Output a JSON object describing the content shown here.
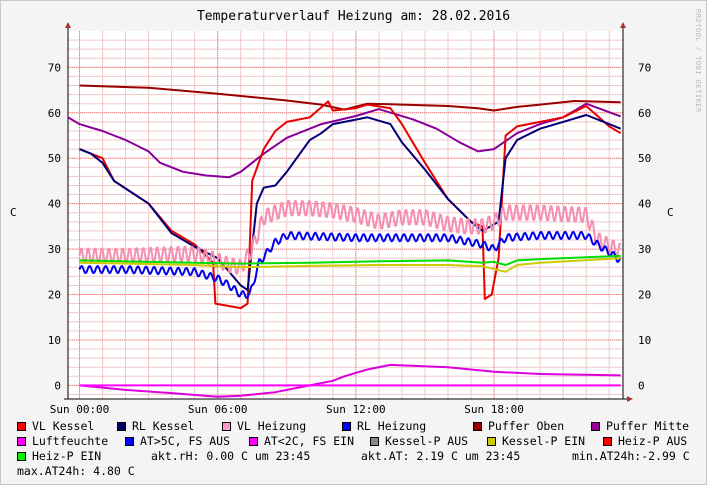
{
  "title": "Temperaturverlauf Heizung am: 28.02.2016",
  "watermark": "RRDTOOL / TOBI OETIKER",
  "ylabel": "C",
  "chart_data": {
    "type": "line",
    "ylim": [
      -3,
      78
    ],
    "xlim": [
      -0.5,
      23.6
    ],
    "grid": true,
    "y_ticks": [
      0,
      10,
      20,
      30,
      40,
      50,
      60,
      70
    ],
    "x_ticks": [
      {
        "v": 0,
        "label": "Sun 00:00"
      },
      {
        "v": 6,
        "label": "Sun 06:00"
      },
      {
        "v": 12,
        "label": "Sun 12:00"
      },
      {
        "v": 18,
        "label": "Sun 18:00"
      }
    ],
    "series": [
      {
        "name": "Puffer Oben",
        "color": "#990000",
        "points": [
          [
            0,
            66
          ],
          [
            3,
            65.5
          ],
          [
            6,
            64.2
          ],
          [
            9,
            62.7
          ],
          [
            10.5,
            61.8
          ],
          [
            11.5,
            60.7
          ],
          [
            12.5,
            62
          ],
          [
            14,
            61.8
          ],
          [
            16,
            61.5
          ],
          [
            17.3,
            61
          ],
          [
            18,
            60.5
          ],
          [
            19,
            61.3
          ],
          [
            20,
            61.8
          ],
          [
            21.5,
            62.6
          ],
          [
            23.5,
            62.3
          ]
        ]
      },
      {
        "name": "Puffer Mitte",
        "color": "#880099",
        "points": [
          [
            -0.5,
            59
          ],
          [
            0,
            57.5
          ],
          [
            1,
            56
          ],
          [
            2,
            54
          ],
          [
            3,
            51.5
          ],
          [
            3.5,
            49
          ],
          [
            4.5,
            47
          ],
          [
            5.5,
            46.2
          ],
          [
            6.5,
            45.8
          ],
          [
            7,
            47
          ],
          [
            8,
            51
          ],
          [
            9,
            54.5
          ],
          [
            10.5,
            57.5
          ],
          [
            12,
            59.3
          ],
          [
            13,
            60.8
          ],
          [
            14.5,
            58.5
          ],
          [
            15.5,
            56.5
          ],
          [
            16.5,
            53.5
          ],
          [
            17.3,
            51.5
          ],
          [
            18,
            52
          ],
          [
            19,
            55.5
          ],
          [
            20,
            57.5
          ],
          [
            21,
            59
          ],
          [
            22,
            62
          ],
          [
            23.5,
            59.2
          ]
        ]
      },
      {
        "name": "VL Kessel",
        "color": "#e60000",
        "points": [
          [
            0,
            52
          ],
          [
            0.5,
            51
          ],
          [
            1,
            50
          ],
          [
            1.5,
            45
          ],
          [
            3,
            40
          ],
          [
            4,
            34
          ],
          [
            5,
            31
          ],
          [
            5.8,
            27
          ],
          [
            5.9,
            18
          ],
          [
            7,
            17
          ],
          [
            7.3,
            18
          ],
          [
            7.5,
            45
          ],
          [
            8,
            52
          ],
          [
            8.5,
            56
          ],
          [
            9,
            58
          ],
          [
            10,
            59
          ],
          [
            10.8,
            62.5
          ],
          [
            11,
            60.5
          ],
          [
            12,
            61
          ],
          [
            12.5,
            61.8
          ],
          [
            13.5,
            61
          ],
          [
            14,
            57.5
          ],
          [
            15,
            49
          ],
          [
            16,
            41
          ],
          [
            17,
            36
          ],
          [
            17.5,
            35
          ],
          [
            17.6,
            19
          ],
          [
            17.9,
            20
          ],
          [
            18.2,
            28
          ],
          [
            18.5,
            55
          ],
          [
            19,
            57
          ],
          [
            20,
            58
          ],
          [
            21,
            59
          ],
          [
            22,
            61.5
          ],
          [
            23,
            57
          ],
          [
            23.5,
            55.5
          ]
        ]
      },
      {
        "name": "RL Kessel",
        "color": "#000077",
        "points": [
          [
            0,
            52
          ],
          [
            0.5,
            51
          ],
          [
            1,
            49
          ],
          [
            1.5,
            45
          ],
          [
            3,
            40
          ],
          [
            4,
            33.5
          ],
          [
            5,
            30.5
          ],
          [
            6,
            28
          ],
          [
            7,
            22
          ],
          [
            7.3,
            21
          ],
          [
            7.7,
            40
          ],
          [
            8,
            43.5
          ],
          [
            8.5,
            44
          ],
          [
            9,
            47
          ],
          [
            10,
            54
          ],
          [
            10.5,
            55.5
          ],
          [
            11,
            57.5
          ],
          [
            12,
            58.5
          ],
          [
            12.5,
            59
          ],
          [
            13.5,
            57.5
          ],
          [
            14,
            53.5
          ],
          [
            15,
            47.5
          ],
          [
            16,
            41
          ],
          [
            17,
            36
          ],
          [
            17.5,
            34
          ],
          [
            18.2,
            36
          ],
          [
            18.5,
            50
          ],
          [
            19,
            54
          ],
          [
            20,
            56.5
          ],
          [
            21,
            58
          ],
          [
            22,
            59.5
          ],
          [
            23,
            57.5
          ],
          [
            23.5,
            56.5
          ]
        ]
      },
      {
        "name": "VL Heizung",
        "color": "#f48fb1",
        "band": 1.8,
        "period": 0.3,
        "points": [
          [
            0,
            28.5
          ],
          [
            2,
            28.5
          ],
          [
            5,
            29
          ],
          [
            6,
            27.5
          ],
          [
            6.5,
            26.5
          ],
          [
            7,
            26
          ],
          [
            7.5,
            30
          ],
          [
            8,
            37
          ],
          [
            9,
            39
          ],
          [
            10,
            39
          ],
          [
            11,
            38.5
          ],
          [
            12,
            37.5
          ],
          [
            13,
            36
          ],
          [
            14,
            37
          ],
          [
            15,
            37
          ],
          [
            16,
            35.5
          ],
          [
            16.8,
            35
          ],
          [
            17.5,
            35
          ],
          [
            18,
            36
          ],
          [
            18.5,
            38
          ],
          [
            20,
            38
          ],
          [
            22,
            37.5
          ],
          [
            22.5,
            32
          ],
          [
            23.5,
            29.5
          ]
        ]
      },
      {
        "name": "RL Heizung",
        "color": "#0000ee",
        "band": 0.8,
        "period": 0.35,
        "points": [
          [
            0,
            25.5
          ],
          [
            2,
            25.5
          ],
          [
            5,
            25
          ],
          [
            6,
            23.5
          ],
          [
            6.5,
            22
          ],
          [
            7,
            20
          ],
          [
            7.4,
            20
          ],
          [
            7.8,
            27
          ],
          [
            8.5,
            31.5
          ],
          [
            9,
            33
          ],
          [
            12,
            32.5
          ],
          [
            14,
            32.5
          ],
          [
            16,
            32.5
          ],
          [
            17,
            31.5
          ],
          [
            17.5,
            31
          ],
          [
            18,
            30
          ],
          [
            18.5,
            32.5
          ],
          [
            20,
            33
          ],
          [
            22,
            33
          ],
          [
            22.5,
            31
          ],
          [
            23.5,
            27.5
          ]
        ]
      },
      {
        "name": "Heiz-P EIN",
        "color": "#00dd00",
        "points": [
          [
            0,
            27.5
          ],
          [
            5,
            27
          ],
          [
            7,
            26.8
          ],
          [
            10,
            27
          ],
          [
            13,
            27.3
          ],
          [
            16,
            27.5
          ],
          [
            17.5,
            27
          ],
          [
            18,
            27.2
          ],
          [
            18.5,
            26.5
          ],
          [
            19,
            27.5
          ],
          [
            20,
            27.8
          ],
          [
            23.5,
            28.5
          ]
        ]
      },
      {
        "name": "Kessel-P EIN",
        "color": "#cccc00",
        "points": [
          [
            0,
            27
          ],
          [
            5,
            26.5
          ],
          [
            7,
            26
          ],
          [
            10,
            26.3
          ],
          [
            13,
            26.5
          ],
          [
            16,
            26.5
          ],
          [
            17.5,
            26.2
          ],
          [
            18.5,
            25
          ],
          [
            19,
            26.5
          ],
          [
            20,
            27
          ],
          [
            23.5,
            28
          ]
        ]
      },
      {
        "name": "Luftfeuchte",
        "color": "#dd00dd",
        "points": [
          [
            0,
            0
          ],
          [
            1,
            -0.5
          ],
          [
            2,
            -1
          ],
          [
            4,
            -1.7
          ],
          [
            6,
            -2.5
          ],
          [
            7,
            -2.3
          ],
          [
            8.5,
            -1.5
          ],
          [
            10,
            0
          ],
          [
            11,
            1
          ],
          [
            11.5,
            2
          ],
          [
            12.5,
            3.5
          ],
          [
            13.5,
            4.5
          ],
          [
            16,
            4
          ],
          [
            18,
            3
          ],
          [
            20,
            2.5
          ],
          [
            23.5,
            2.2
          ]
        ]
      },
      {
        "name": "AT<2C, FS EIN",
        "color": "#ff00ff",
        "points": [
          [
            0,
            0
          ],
          [
            23.5,
            0
          ]
        ]
      }
    ]
  },
  "legend": [
    {
      "label": "VL Kessel",
      "color": "#ff0000"
    },
    {
      "label": "RL Kessel",
      "color": "#000066"
    },
    {
      "label": "VL Heizung",
      "color": "#ff99cc"
    },
    {
      "label": "RL Heizung",
      "color": "#0000ff"
    },
    {
      "label": "Puffer Oben",
      "color": "#990000"
    },
    {
      "label": "Puffer Mitte",
      "color": "#990099"
    },
    {
      "label": "Luftfeuchte",
      "color": "#ff00ff"
    },
    {
      "label": "AT>5C, FS AUS",
      "color": "#0000ff"
    },
    {
      "label": "AT<2C, FS EIN",
      "color": "#ff00ff"
    },
    {
      "label": "Kessel-P AUS",
      "color": "#888888"
    },
    {
      "label": "Kessel-P EIN",
      "color": "#cccc00"
    },
    {
      "label": "Heiz-P AUS",
      "color": "#ff0000"
    },
    {
      "label": "Heiz-P EIN",
      "color": "#00ee00"
    }
  ],
  "stats": {
    "rh": "akt.rH: 0.00 C um 23:45",
    "at": "akt.AT: 2.19 C um 23:45",
    "min": "min.AT24h:-2.99 C",
    "max": "max.AT24h: 4.80 C"
  }
}
